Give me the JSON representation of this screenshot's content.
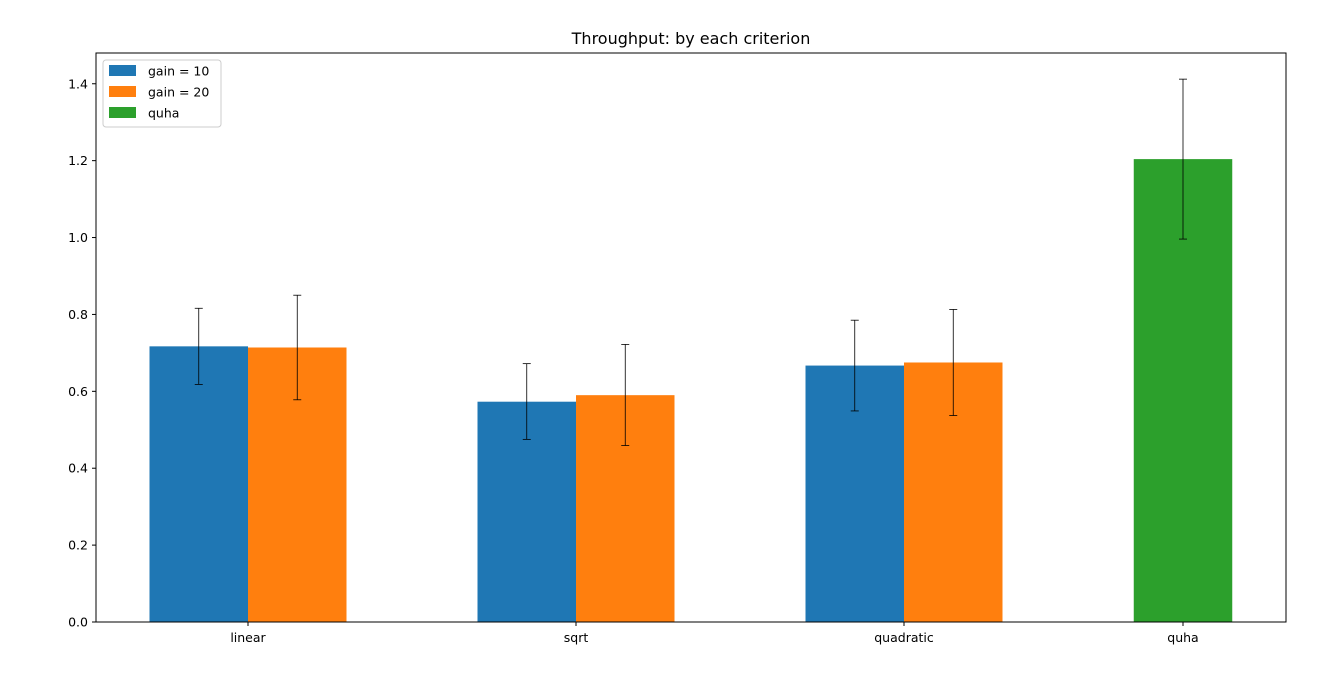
{
  "chart_data": {
    "type": "bar",
    "title": "Throughput: by each criterion",
    "xlabel": "",
    "ylabel": "",
    "categories": [
      "linear",
      "sqrt",
      "quadratic",
      "quha"
    ],
    "ylim": [
      0,
      1.48
    ],
    "yticks": [
      "0.0",
      "0.2",
      "0.4",
      "0.6",
      "0.8",
      "1.0",
      "1.2",
      "1.4"
    ],
    "grid": false,
    "legend_position": "top-left",
    "series": [
      {
        "name": "gain = 10",
        "color": "#1f77b4",
        "values": [
          0.717,
          0.573,
          0.667,
          null
        ],
        "error_low": [
          0.618,
          0.475,
          0.549,
          null
        ],
        "error_high": [
          0.816,
          0.672,
          0.785,
          null
        ]
      },
      {
        "name": "gain = 20",
        "color": "#ff7f0e",
        "values": [
          0.714,
          0.59,
          0.675,
          null
        ],
        "error_low": [
          0.578,
          0.459,
          0.537,
          null
        ],
        "error_high": [
          0.85,
          0.722,
          0.813,
          null
        ]
      },
      {
        "name": "quha",
        "color": "#2ca02c",
        "values": [
          null,
          null,
          null,
          1.204
        ],
        "error_low": [
          null,
          null,
          null,
          0.996
        ],
        "error_high": [
          null,
          null,
          null,
          1.412
        ]
      }
    ]
  }
}
